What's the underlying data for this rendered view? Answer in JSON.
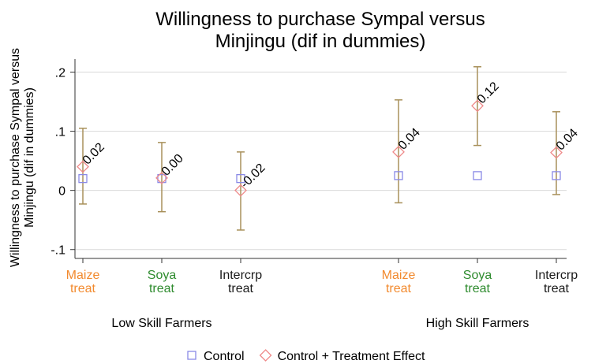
{
  "chart_data": {
    "type": "dot_errorbar",
    "title": [
      "Willingness to purchase Sympal versus",
      "Minjingu (dif in dummies)"
    ],
    "y_label": [
      "Willingness to purchase Sympal versus",
      "Minjingu (dif in dummies)"
    ],
    "categories": [
      "Maize treat",
      "Soya treat",
      "Intercrp treat",
      null,
      "Maize treat",
      "Soya treat",
      "Intercrp treat"
    ],
    "category_colors": [
      "#f28a2e",
      "#2e8b2e",
      "#1a1a1a",
      null,
      "#f28a2e",
      "#2e8b2e",
      "#1a1a1a"
    ],
    "groups": [
      "Low Skill Farmers",
      "High Skill Farmers"
    ],
    "series": [
      {
        "name": "Control",
        "color": "#8a8ae6",
        "marker": "square",
        "values": [
          0.02,
          0.02,
          0.02,
          null,
          0.025,
          0.025,
          0.025
        ]
      },
      {
        "name": "Control + Treatment Effect",
        "color": "#ef8a8a",
        "marker": "diamond",
        "values": [
          0.04,
          0.021,
          0.0,
          null,
          0.065,
          0.143,
          0.064
        ],
        "ci_low": [
          -0.023,
          -0.036,
          -0.067,
          null,
          -0.021,
          0.076,
          -0.007
        ],
        "ci_high": [
          0.105,
          0.081,
          0.065,
          null,
          0.153,
          0.209,
          0.133
        ],
        "ci_color": "#a8905a",
        "annotations": [
          "0.02",
          "0.00",
          "-0.02",
          null,
          "0.04",
          "0.12",
          "0.04"
        ]
      }
    ],
    "ylim": [
      -0.115,
      0.222
    ],
    "yticks": [
      {
        "value": 0.2,
        "label": ".2"
      },
      {
        "value": 0.1,
        "label": ".1"
      },
      0,
      {
        "value": -0.1,
        "label": "-.1"
      }
    ],
    "grid": true
  }
}
